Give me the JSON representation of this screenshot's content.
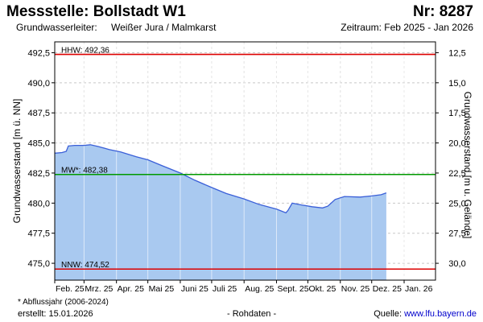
{
  "header": {
    "title": "Messstelle: Bollstadt W1",
    "nr": "Nr: 8287",
    "aquifer_label": "Grundwasserleiter:",
    "aquifer_value": "Weißer Jura / Malmkarst",
    "period": "Zeitraum: Feb 2025 - Jan 2026"
  },
  "footer": {
    "footnote": "* Abflussjahr (2006-2024)",
    "created": "erstellt:  15.01.2026",
    "rawdata": "- Rohdaten -",
    "source_label": "Quelle: ",
    "source_link": "www.lfu.bayern.de"
  },
  "colors": {
    "fill": "#a9c9f0",
    "line": "#3a5fd8",
    "hhw": "#dd0000",
    "nnw": "#dd0000",
    "mw": "#009900",
    "grid": "#c8c8c8",
    "frame": "#000000"
  },
  "chart_data": {
    "type": "area",
    "ylabel": "Grundwasserstand [m ü. NN]",
    "y2label": "Grundwasserstand [m u. Gelände]",
    "ylim": [
      473.6,
      493.4
    ],
    "y_ticks": [
      475.0,
      477.5,
      480.0,
      482.5,
      485.0,
      487.5,
      490.0,
      492.5
    ],
    "y_tick_labels": [
      "475,0",
      "477,5",
      "480,0",
      "482,5",
      "485,0",
      "487,5",
      "490,0",
      "492,5"
    ],
    "y2_ticks": [
      12.5,
      15.0,
      17.5,
      20.0,
      22.5,
      25.0,
      27.5,
      30.0
    ],
    "y2_tick_labels": [
      "12,5",
      "15,0",
      "17,5",
      "20,0",
      "22,5",
      "25,0",
      "27,5",
      "30,0"
    ],
    "y2_reference": 505.0,
    "xlim": [
      "2025-02-01",
      "2026-01-31"
    ],
    "x_ticks": [
      "2025-02-01",
      "2025-03-01",
      "2025-04-01",
      "2025-05-01",
      "2025-06-01",
      "2025-07-01",
      "2025-08-01",
      "2025-09-01",
      "2025-10-01",
      "2025-11-01",
      "2025-12-01",
      "2026-01-01"
    ],
    "x_tick_labels": [
      "Feb. 25",
      "Mrz. 25",
      "Apr. 25",
      "Mai 25",
      "Juni 25",
      "Juli 25",
      "Aug. 25",
      "Sept. 25",
      "Okt. 25",
      "Nov. 25",
      "Dez. 25",
      "Jan. 26"
    ],
    "reference_lines": [
      {
        "name": "HHW",
        "label": "HHW: 492,36",
        "value": 492.36
      },
      {
        "name": "MW",
        "label": "MW*: 482,38",
        "value": 482.38
      },
      {
        "name": "NNW",
        "label": "NNW: 474,52",
        "value": 474.52
      }
    ],
    "series": [
      {
        "x": [
          "2025-02-01",
          "2025-02-08",
          "2025-02-12",
          "2025-02-14",
          "2025-02-20",
          "2025-03-01",
          "2025-03-07",
          "2025-03-15",
          "2025-03-25",
          "2025-04-05",
          "2025-04-20",
          "2025-05-01",
          "2025-05-15",
          "2025-06-01",
          "2025-06-15",
          "2025-07-01",
          "2025-07-15",
          "2025-08-01",
          "2025-08-15",
          "2025-09-01",
          "2025-09-10",
          "2025-09-12",
          "2025-09-16",
          "2025-09-25",
          "2025-10-05",
          "2025-10-15",
          "2025-10-20",
          "2025-10-27",
          "2025-11-05",
          "2025-11-20",
          "2025-12-01",
          "2025-12-10",
          "2025-12-15"
        ],
        "y": [
          484.15,
          484.2,
          484.3,
          484.75,
          484.8,
          484.8,
          484.85,
          484.7,
          484.45,
          484.25,
          483.85,
          483.6,
          483.1,
          482.5,
          481.9,
          481.3,
          480.8,
          480.35,
          479.9,
          479.5,
          479.2,
          479.4,
          480.0,
          479.85,
          479.7,
          479.6,
          479.75,
          480.3,
          480.55,
          480.5,
          480.6,
          480.7,
          480.85
        ]
      }
    ]
  }
}
